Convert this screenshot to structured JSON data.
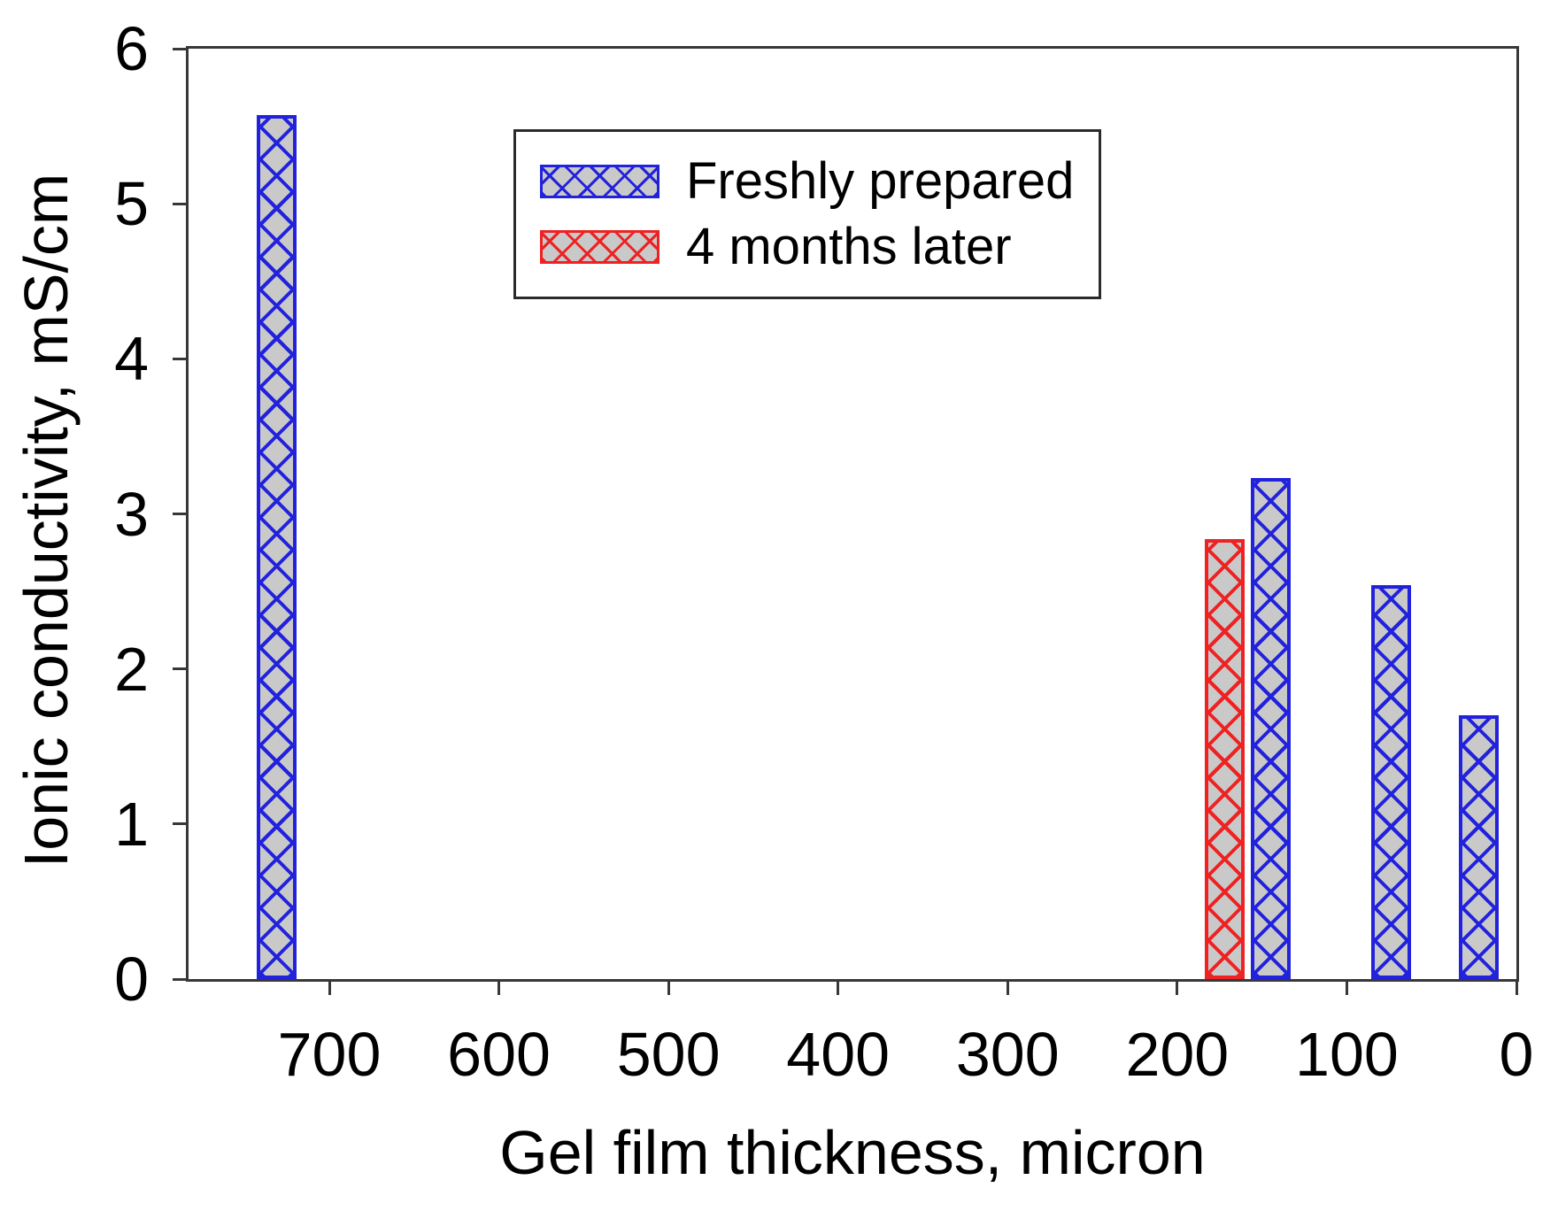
{
  "figure": {
    "background": "#ffffff",
    "axis_color": "#383838",
    "text_color": "#000000",
    "bar_fill": "#c9c9c9"
  },
  "chart_data": {
    "type": "bar",
    "title": "",
    "xlabel": "Gel film thickness, micron",
    "ylabel": "Ionic conductivity, mS/cm",
    "grid": false,
    "x_axis": {
      "min": 0,
      "max": 783,
      "reversed": true,
      "ticks": [
        700,
        600,
        500,
        400,
        300,
        200,
        100,
        0
      ],
      "tick_labels": [
        "700",
        "600",
        "500",
        "400",
        "300",
        "200",
        "100",
        "0"
      ]
    },
    "y_axis": {
      "min": 0,
      "max": 6,
      "ticks": [
        0,
        1,
        2,
        3,
        4,
        5,
        6
      ],
      "tick_labels": [
        "0",
        "1",
        "2",
        "3",
        "4",
        "5",
        "6"
      ]
    },
    "bar_width_micron": 23.5,
    "legend": {
      "position": "upper-center-inside",
      "entries": [
        "Freshly prepared",
        "4 months later"
      ]
    },
    "series": [
      {
        "name": "Freshly prepared",
        "color": "#2222dd",
        "points": [
          {
            "x": 731,
            "y": 5.57
          },
          {
            "x": 145,
            "y": 3.23
          },
          {
            "x": 74,
            "y": 2.54
          },
          {
            "x": 22,
            "y": 1.7
          }
        ]
      },
      {
        "name": "4 months later",
        "color": "#ee2222",
        "points": [
          {
            "x": 172,
            "y": 2.84
          }
        ]
      }
    ]
  }
}
